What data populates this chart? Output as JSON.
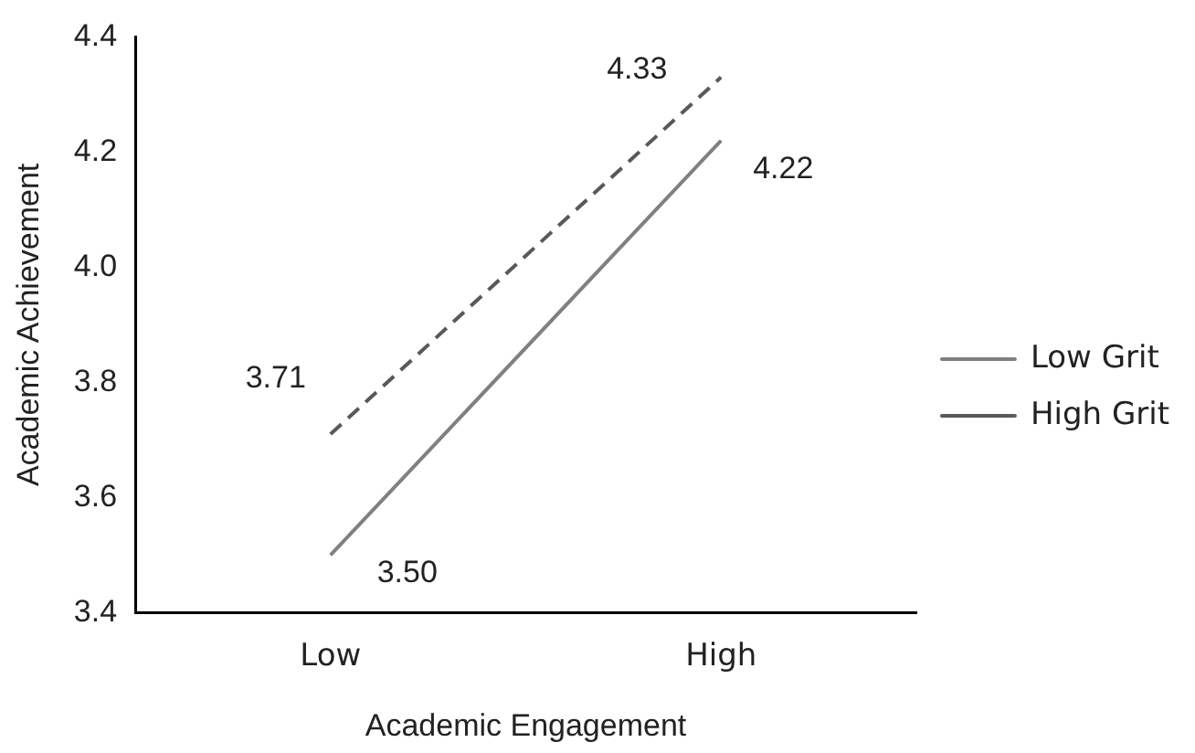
{
  "chart_data": {
    "type": "line",
    "xlabel": "Academic Engagement",
    "ylabel": "Academic Achievement",
    "categories": [
      "Low",
      "High"
    ],
    "series": [
      {
        "name": "Low Grit",
        "color": "#808080",
        "values": [
          3.5,
          4.22
        ],
        "value_labels": [
          "3.50",
          "4.22"
        ],
        "line_style": "solid"
      },
      {
        "name": "High Grit",
        "color": "#595959",
        "values": [
          3.71,
          4.33
        ],
        "value_labels": [
          "3.71",
          "4.33"
        ],
        "line_style": "dashed"
      }
    ],
    "ylim": [
      3.4,
      4.4
    ],
    "yticks": [
      {
        "value": 3.4,
        "label": "3.4"
      },
      {
        "value": 3.6,
        "label": "3.6"
      },
      {
        "value": 3.8,
        "label": "3.8"
      },
      {
        "value": 4.0,
        "label": "4.0"
      },
      {
        "value": 4.2,
        "label": "4.2"
      },
      {
        "value": 4.4,
        "label": "4.4"
      }
    ],
    "grid": false,
    "legend": "right",
    "marker": "none"
  }
}
